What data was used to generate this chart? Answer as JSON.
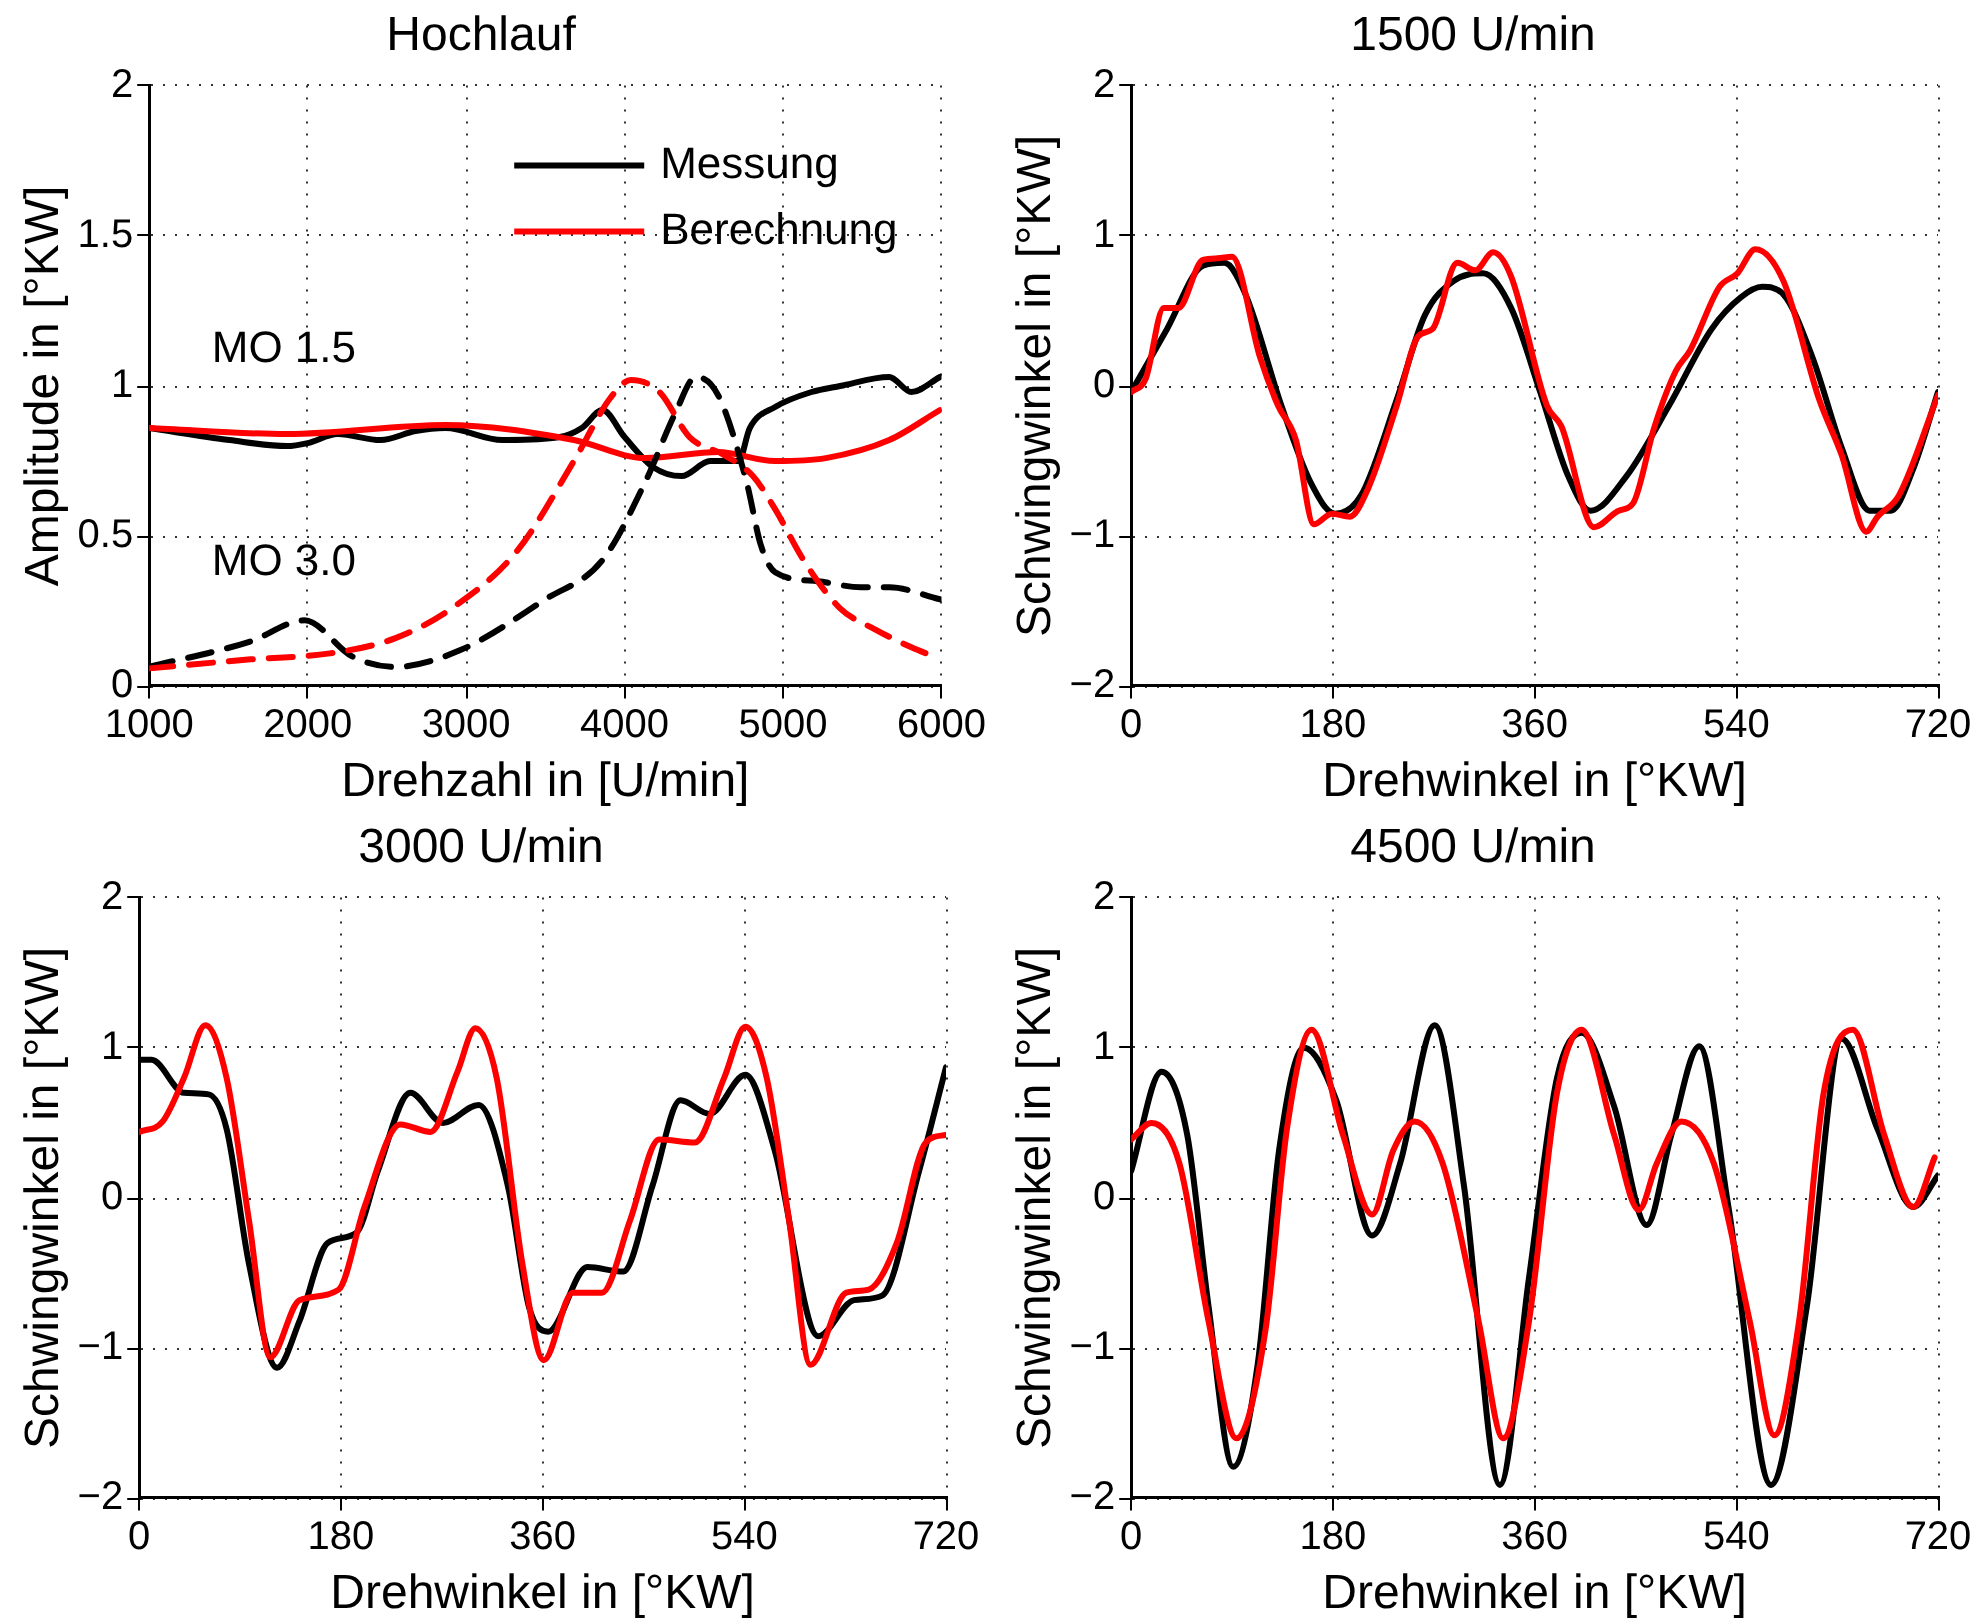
{
  "chart_data": [
    {
      "type": "line",
      "title": "Hochlauf",
      "xlabel": "Drehzahl in [U/min]",
      "ylabel": "Amplitude in [°KW]",
      "xlim": [
        1000,
        6000
      ],
      "xticks": [
        1000,
        2000,
        3000,
        4000,
        5000,
        6000
      ],
      "ylim": [
        0,
        2
      ],
      "yticks": [
        0,
        0.5,
        1,
        1.5,
        2
      ],
      "grid": true,
      "legend": "top right",
      "line_style": "solid",
      "annotations": [
        "MO 1.5",
        "MO 3.0"
      ],
      "series": [
        {
          "name": "Messung",
          "color": "#000000",
          "x": [
            1000,
            1507,
            1870,
            2000,
            2190,
            2460,
            2680,
            2870,
            3230,
            3590,
            3730,
            3860,
            4000,
            4180,
            4360,
            4540,
            4720,
            4790,
            4950,
            5180,
            5360,
            5670,
            5810,
            5990
          ],
          "values": [
            0.86,
            0.82,
            0.8,
            0.81,
            0.84,
            0.82,
            0.85,
            0.86,
            0.82,
            0.83,
            0.86,
            0.92,
            0.83,
            0.73,
            0.7,
            0.75,
            0.75,
            0.86,
            0.93,
            0.98,
            1.0,
            1.03,
            0.98,
            1.03
          ]
        },
        {
          "name": "Berechnung",
          "color": "#ff0000",
          "x": [
            1000,
            1870,
            2870,
            3680,
            4130,
            4590,
            4950,
            5270,
            5670,
            5990
          ],
          "values": [
            0.86,
            0.84,
            0.87,
            0.82,
            0.76,
            0.78,
            0.75,
            0.76,
            0.82,
            0.92
          ]
        },
        {
          "color": "#000000",
          "line_style": "dashed",
          "x": [
            1000,
            1640,
            1980,
            2280,
            2550,
            2960,
            3500,
            3860,
            4130,
            4320,
            4450,
            4590,
            4770,
            4860,
            4950,
            5220,
            5490,
            5670,
            5990
          ],
          "values": [
            0.065,
            0.15,
            0.22,
            0.1,
            0.065,
            0.12,
            0.29,
            0.42,
            0.68,
            0.91,
            1.03,
            0.97,
            0.68,
            0.47,
            0.38,
            0.35,
            0.33,
            0.33,
            0.29
          ]
        },
        {
          "color": "#ff0000",
          "line_style": "dashed",
          "x": [
            1000,
            1640,
            2140,
            2550,
            2910,
            3320,
            3680,
            3910,
            4040,
            4220,
            4410,
            4630,
            4810,
            4950,
            5130,
            5360,
            5580,
            5810,
            5950
          ],
          "values": [
            0.06,
            0.09,
            0.11,
            0.16,
            0.26,
            0.45,
            0.75,
            0.96,
            1.02,
            0.98,
            0.83,
            0.77,
            0.7,
            0.59,
            0.42,
            0.26,
            0.19,
            0.13,
            0.1
          ]
        }
      ]
    },
    {
      "type": "line",
      "title": "1500 U/min",
      "xlabel": "Drehwinkel in [°KW]",
      "ylabel": "Schwingwinkel in [°KW]",
      "xlim": [
        0,
        720
      ],
      "xticks": [
        0,
        180,
        360,
        540,
        720
      ],
      "ylim": [
        -2,
        2
      ],
      "yticks": [
        -2,
        -1,
        0,
        1,
        2
      ],
      "grid": true,
      "line_style": "solid",
      "series": [
        {
          "color": "#000000",
          "x": [
            0,
            32,
            64,
            83,
            102,
            134,
            160,
            182,
            205,
            237,
            262,
            288,
            314,
            339,
            365,
            390,
            410,
            442,
            480,
            518,
            544,
            563,
            582,
            608,
            634,
            659,
            678,
            698,
            720
          ],
          "values": [
            -0.04,
            0.38,
            0.8,
            0.82,
            0.61,
            -0.13,
            -0.64,
            -0.85,
            -0.73,
            -0.09,
            0.47,
            0.7,
            0.75,
            0.52,
            -0.04,
            -0.6,
            -0.83,
            -0.6,
            -0.13,
            0.38,
            0.59,
            0.66,
            0.61,
            0.19,
            -0.41,
            -0.83,
            -0.83,
            -0.55,
            -0.04
          ]
        },
        {
          "color": "#ff0000",
          "x": [
            0,
            13,
            29,
            42,
            64,
            77,
            90,
            115,
            131,
            147,
            163,
            179,
            195,
            211,
            237,
            256,
            269,
            291,
            307,
            323,
            339,
            371,
            384,
            413,
            435,
            448,
            467,
            486,
            499,
            525,
            541,
            557,
            582,
            614,
            634,
            656,
            666,
            685,
            720
          ],
          "values": [
            -0.04,
            0.05,
            0.52,
            0.52,
            0.84,
            0.85,
            0.86,
            0.19,
            -0.13,
            -0.36,
            -0.92,
            -0.85,
            -0.87,
            -0.69,
            -0.13,
            0.33,
            0.38,
            0.82,
            0.77,
            0.89,
            0.73,
            -0.13,
            -0.27,
            -0.94,
            -0.83,
            -0.78,
            -0.27,
            0.1,
            0.24,
            0.66,
            0.75,
            0.91,
            0.7,
            -0.09,
            -0.46,
            -0.97,
            -0.87,
            -0.73,
            -0.06
          ]
        }
      ]
    },
    {
      "type": "line",
      "title": "3000 U/min",
      "xlabel": "Drehwinkel in [°KW]",
      "ylabel": "Schwingwinkel in [°KW]",
      "xlim": [
        0,
        720
      ],
      "xticks": [
        0,
        180,
        360,
        540,
        720
      ],
      "ylim": [
        -2,
        2
      ],
      "yticks": [
        -2,
        -1,
        0,
        1,
        2
      ],
      "grid": true,
      "line_style": "solid",
      "series": [
        {
          "color": "#000000",
          "x": [
            0,
            11,
            40,
            62,
            78,
            98,
            123,
            143,
            168,
            194,
            213,
            242,
            271,
            303,
            329,
            348,
            365,
            400,
            432,
            458,
            483,
            509,
            541,
            567,
            606,
            638,
            663,
            696,
            720
          ],
          "values": [
            0.92,
            0.92,
            0.7,
            0.69,
            0.46,
            -0.44,
            -1.13,
            -0.82,
            -0.3,
            -0.23,
            0.18,
            0.7,
            0.5,
            0.62,
            0.08,
            -0.73,
            -0.89,
            -0.46,
            -0.49,
            0.08,
            0.65,
            0.56,
            0.82,
            0.32,
            -0.92,
            -0.68,
            -0.65,
            0.18,
            0.87
          ]
        },
        {
          "color": "#ff0000",
          "x": [
            0,
            21,
            40,
            59,
            78,
            98,
            117,
            143,
            178,
            201,
            233,
            260,
            284,
            300,
            319,
            342,
            361,
            387,
            413,
            438,
            464,
            496,
            522,
            541,
            560,
            580,
            599,
            631,
            651,
            676,
            702,
            720
          ],
          "values": [
            0.44,
            0.51,
            0.8,
            1.15,
            0.8,
            -0.15,
            -1.06,
            -0.68,
            -0.61,
            -0.06,
            0.49,
            0.44,
            0.84,
            1.13,
            0.8,
            -0.44,
            -1.08,
            -0.63,
            -0.63,
            -0.15,
            0.39,
            0.37,
            0.8,
            1.14,
            0.8,
            -0.15,
            -1.11,
            -0.63,
            -0.61,
            -0.3,
            0.37,
            0.42
          ]
        }
      ]
    },
    {
      "type": "line",
      "title": "4500 U/min",
      "xlabel": "Drehwinkel in [°KW]",
      "ylabel": "Schwingwinkel in [°KW]",
      "xlim": [
        0,
        720
      ],
      "xticks": [
        0,
        180,
        360,
        540,
        720
      ],
      "ylim": [
        -2,
        2
      ],
      "yticks": [
        -2,
        -1,
        0,
        1,
        2
      ],
      "grid": true,
      "line_style": "solid",
      "series": [
        {
          "color": "#000000",
          "x": [
            0,
            27,
            50,
            69,
            91,
            113,
            132,
            154,
            183,
            215,
            240,
            271,
            297,
            329,
            355,
            380,
            402,
            431,
            460,
            482,
            507,
            533,
            571,
            603,
            634,
            666,
            698,
            720
          ],
          "values": [
            0.18,
            0.84,
            0.42,
            -0.72,
            -1.79,
            -1.1,
            0.32,
            1.0,
            0.65,
            -0.25,
            0.23,
            1.15,
            0.08,
            -1.91,
            -0.53,
            0.8,
            1.1,
            0.61,
            -0.18,
            0.42,
            1.01,
            -0.06,
            -1.91,
            -0.72,
            1.06,
            0.46,
            -0.06,
            0.15
          ]
        },
        {
          "color": "#ff0000",
          "x": [
            0,
            18,
            43,
            69,
            94,
            120,
            139,
            161,
            189,
            215,
            234,
            253,
            278,
            310,
            332,
            355,
            380,
            402,
            431,
            453,
            469,
            491,
            520,
            552,
            574,
            596,
            618,
            644,
            672,
            698,
            717
          ],
          "values": [
            0.39,
            0.5,
            0.23,
            -0.82,
            -1.6,
            -0.87,
            0.46,
            1.12,
            0.42,
            -0.11,
            0.32,
            0.51,
            0.23,
            -0.82,
            -1.6,
            -0.82,
            0.7,
            1.12,
            0.42,
            -0.08,
            0.23,
            0.51,
            0.23,
            -0.82,
            -1.58,
            -0.82,
            0.7,
            1.12,
            0.42,
            -0.06,
            0.27
          ]
        }
      ]
    }
  ]
}
